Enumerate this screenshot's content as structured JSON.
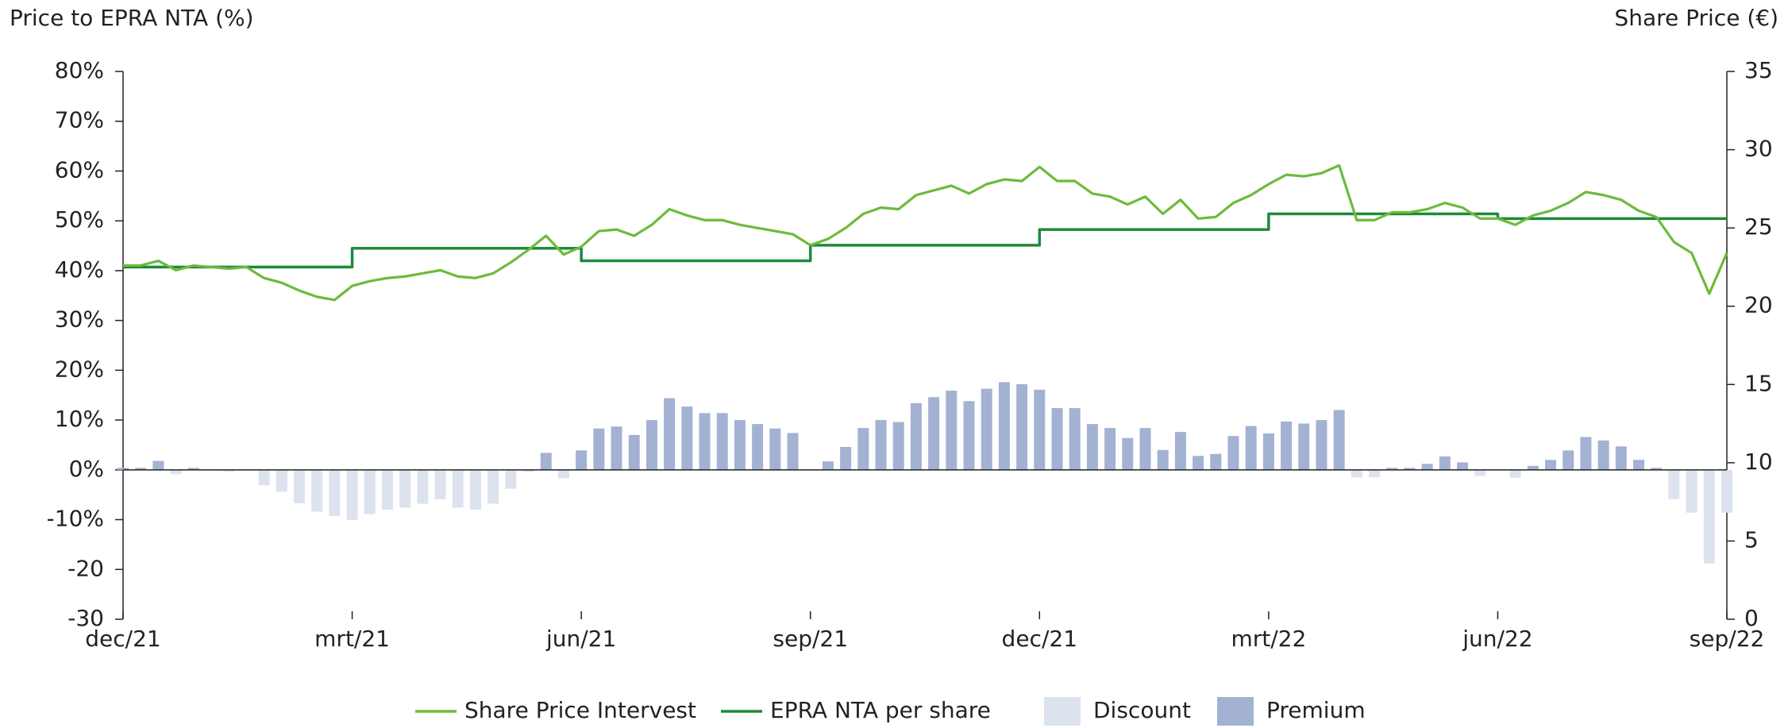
{
  "chart_data": {
    "type": "bar-line",
    "ylabel": "Price to EPRA NTA (%)",
    "y2label": "Share Price (€)",
    "categories": [
      "dec/21",
      null,
      null,
      null,
      null,
      null,
      null,
      null,
      null,
      null,
      null,
      null,
      null,
      "mrt/21",
      null,
      null,
      null,
      null,
      null,
      null,
      null,
      null,
      null,
      null,
      null,
      null,
      "jun/21",
      null,
      null,
      null,
      null,
      null,
      null,
      null,
      null,
      null,
      null,
      null,
      null,
      "sep/21",
      null,
      null,
      null,
      null,
      null,
      null,
      null,
      null,
      null,
      null,
      null,
      null,
      "dec/21",
      null,
      null,
      null,
      null,
      null,
      null,
      null,
      null,
      null,
      null,
      null,
      null,
      "mrt/22",
      null,
      null,
      null,
      null,
      null,
      null,
      null,
      null,
      null,
      null,
      null,
      null,
      "jun/22",
      null,
      null,
      null,
      null,
      null,
      null,
      null,
      null,
      null,
      null,
      null,
      null,
      "sep/22"
    ],
    "ylim": [
      -30,
      80
    ],
    "yticks": [
      {
        "value": -30,
        "label": "-30"
      },
      -20,
      {
        "value": -10,
        "label": "-10%"
      },
      {
        "value": 0,
        "label": "0%"
      },
      {
        "value": 10,
        "label": "10%"
      },
      {
        "value": 20,
        "label": "20%"
      },
      {
        "value": 30,
        "label": "30%"
      },
      {
        "value": 40,
        "label": "40%"
      },
      {
        "value": 50,
        "label": "50%"
      },
      {
        "value": 60,
        "label": "60%"
      },
      {
        "value": 70,
        "label": "70%"
      },
      {
        "value": 80,
        "label": "80%"
      }
    ],
    "y2lim": [
      0,
      35
    ],
    "y2ticks": [
      0,
      5,
      10,
      15,
      20,
      25,
      30,
      35
    ],
    "series": [
      {
        "name": "Share Price Intervest",
        "type": "line",
        "axis": "y2",
        "color": "#6cbb3c",
        "values": [
          22.6,
          22.6,
          22.9,
          22.3,
          22.6,
          22.5,
          22.4,
          22.5,
          21.8,
          21.5,
          21.0,
          20.6,
          20.4,
          21.3,
          21.6,
          21.8,
          21.9,
          22.1,
          22.3,
          21.9,
          21.8,
          22.1,
          22.8,
          23.6,
          24.5,
          23.3,
          23.8,
          24.8,
          24.9,
          24.5,
          25.2,
          26.2,
          25.8,
          25.5,
          25.5,
          25.2,
          25.0,
          24.8,
          24.6,
          23.9,
          24.3,
          25.0,
          25.9,
          26.3,
          26.2,
          27.1,
          27.4,
          27.7,
          27.2,
          27.8,
          28.1,
          28.0,
          28.9,
          28.0,
          28.0,
          27.2,
          27.0,
          26.5,
          27.0,
          25.9,
          26.8,
          25.6,
          25.7,
          26.6,
          27.1,
          27.8,
          28.4,
          28.3,
          28.5,
          29.0,
          25.5,
          25.5,
          26.0,
          26.0,
          26.2,
          26.6,
          26.3,
          25.6,
          25.6,
          25.2,
          25.8,
          26.1,
          26.6,
          27.3,
          27.1,
          26.8,
          26.1,
          25.7,
          24.1,
          23.4,
          20.8,
          23.4
        ]
      },
      {
        "name": "EPRA NTA per share",
        "type": "step",
        "axis": "y2",
        "color": "#1e8a3a",
        "values": [
          22.5,
          22.5,
          22.5,
          22.5,
          22.5,
          22.5,
          22.5,
          22.5,
          22.5,
          22.5,
          22.5,
          22.5,
          22.5,
          23.7,
          23.7,
          23.7,
          23.7,
          23.7,
          23.7,
          23.7,
          23.7,
          23.7,
          23.7,
          23.7,
          23.7,
          23.7,
          22.9,
          22.9,
          22.9,
          22.9,
          22.9,
          22.9,
          22.9,
          22.9,
          22.9,
          22.9,
          22.9,
          22.9,
          22.9,
          23.9,
          23.9,
          23.9,
          23.9,
          23.9,
          23.9,
          23.9,
          23.9,
          23.9,
          23.9,
          23.9,
          23.9,
          23.9,
          24.9,
          24.9,
          24.9,
          24.9,
          24.9,
          24.9,
          24.9,
          24.9,
          24.9,
          24.9,
          24.9,
          24.9,
          24.9,
          25.9,
          25.9,
          25.9,
          25.9,
          25.9,
          25.9,
          25.9,
          25.9,
          25.9,
          25.9,
          25.9,
          25.9,
          25.9,
          25.6,
          25.6,
          25.6,
          25.6,
          25.6,
          25.6,
          25.6,
          25.6,
          25.6,
          25.6,
          25.6,
          25.6,
          25.6,
          25.6
        ]
      },
      {
        "name": "Discount",
        "type": "bar",
        "color": "#dce3ee",
        "values": [
          null,
          null,
          null,
          -0.9,
          null,
          null,
          -0.4,
          null,
          -3.1,
          -4.4,
          -6.7,
          -8.4,
          -9.3,
          -10.1,
          -8.9,
          -8.0,
          -7.6,
          -6.8,
          -5.9,
          -7.6,
          -8.0,
          -6.8,
          -3.8,
          -0.4,
          null,
          -1.7,
          null,
          null,
          null,
          null,
          null,
          null,
          null,
          null,
          null,
          null,
          null,
          null,
          null,
          null,
          null,
          null,
          null,
          null,
          null,
          null,
          null,
          null,
          null,
          null,
          null,
          null,
          null,
          null,
          null,
          null,
          null,
          null,
          null,
          null,
          null,
          null,
          null,
          null,
          null,
          null,
          null,
          null,
          null,
          null,
          -1.5,
          -1.5,
          null,
          null,
          null,
          null,
          null,
          -1.2,
          null,
          -1.6,
          null,
          null,
          null,
          null,
          null,
          null,
          null,
          null,
          -5.9,
          -8.6,
          -18.8,
          -8.6
        ]
      },
      {
        "name": "Premium",
        "type": "bar",
        "color": "#a3b2d2",
        "values": [
          0.4,
          0.4,
          1.8,
          null,
          0.4,
          0,
          null,
          0,
          null,
          null,
          null,
          null,
          null,
          null,
          null,
          null,
          null,
          null,
          null,
          null,
          null,
          null,
          null,
          null,
          3.4,
          null,
          3.9,
          8.3,
          8.7,
          7.0,
          10.0,
          14.4,
          12.7,
          11.4,
          11.4,
          10.0,
          9.2,
          8.3,
          7.4,
          0,
          1.7,
          4.6,
          8.4,
          10.0,
          9.6,
          13.4,
          14.6,
          15.9,
          13.8,
          16.3,
          17.6,
          17.2,
          16.1,
          12.4,
          12.4,
          9.2,
          8.4,
          6.4,
          8.4,
          4.0,
          7.6,
          2.8,
          3.2,
          6.8,
          8.8,
          7.3,
          9.7,
          9.3,
          10.0,
          12.0,
          null,
          null,
          0.4,
          0.4,
          1.2,
          2.7,
          1.5,
          null,
          0,
          null,
          0.8,
          2.0,
          3.9,
          6.6,
          5.9,
          4.7,
          2.0,
          0.4,
          null,
          null,
          null,
          null
        ]
      }
    ],
    "legend": "bottom"
  }
}
